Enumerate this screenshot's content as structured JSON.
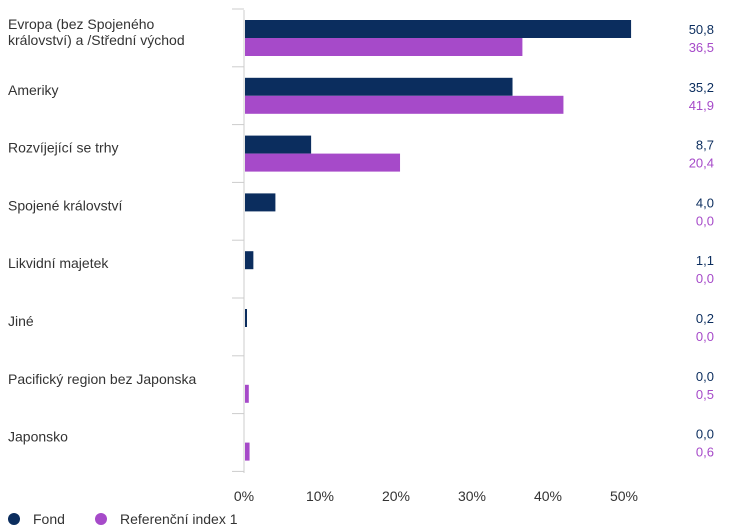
{
  "chart_data": {
    "type": "bar",
    "orientation": "horizontal",
    "categories": [
      [
        "Evropa (bez Spojeného",
        "království) a /Střední východ"
      ],
      [
        "Ameriky"
      ],
      [
        "Rozvíjející se trhy"
      ],
      [
        "Spojené království"
      ],
      [
        "Likvidní majetek"
      ],
      [
        "Jiné"
      ],
      [
        "Pacifický region bez Japonska"
      ],
      [
        "Japonsko"
      ]
    ],
    "series": [
      {
        "name": "Fond",
        "color": "#0b2d5e",
        "values": [
          50.8,
          35.2,
          8.7,
          4.0,
          1.1,
          0.2,
          0.0,
          0.0
        ],
        "labels": [
          "50,8",
          "35,2",
          "8,7",
          "4,0",
          "1,1",
          "0,2",
          "0,0",
          "0,0"
        ]
      },
      {
        "name": "Referenční index 1",
        "color": "#a64ac9",
        "values": [
          36.5,
          41.9,
          20.4,
          0.0,
          0.0,
          0.0,
          0.5,
          0.6
        ],
        "labels": [
          "36,5",
          "41,9",
          "20,4",
          "0,0",
          "0,0",
          "0,0",
          "0,5",
          "0,6"
        ]
      }
    ],
    "xticks": [
      "0%",
      "10%",
      "20%",
      "30%",
      "40%",
      "50%"
    ],
    "xlim": [
      0,
      60
    ],
    "grid": false,
    "legend": "bottom-left"
  }
}
